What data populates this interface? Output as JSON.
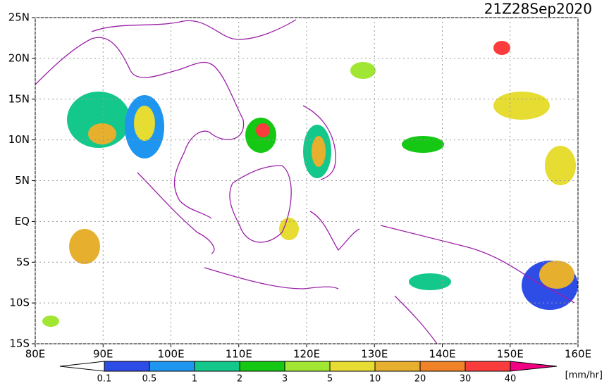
{
  "title": "21Z28Sep2020",
  "map": {
    "xlim": [
      80,
      160
    ],
    "ylim": [
      -15,
      25
    ],
    "xticks": [
      {
        "value": 80,
        "label": "80E"
      },
      {
        "value": 90,
        "label": "90E"
      },
      {
        "value": 100,
        "label": "100E"
      },
      {
        "value": 110,
        "label": "110E"
      },
      {
        "value": 120,
        "label": "120E"
      },
      {
        "value": 130,
        "label": "130E"
      },
      {
        "value": 140,
        "label": "140E"
      },
      {
        "value": 150,
        "label": "150E"
      },
      {
        "value": 160,
        "label": "160E"
      }
    ],
    "yticks": [
      {
        "value": 25,
        "label": "25N"
      },
      {
        "value": 20,
        "label": "20N"
      },
      {
        "value": 15,
        "label": "15N"
      },
      {
        "value": 10,
        "label": "10N"
      },
      {
        "value": 5,
        "label": "5N"
      },
      {
        "value": 0,
        "label": "EQ"
      },
      {
        "value": -5,
        "label": "5S"
      },
      {
        "value": -10,
        "label": "10S"
      },
      {
        "value": -15,
        "label": "15S"
      }
    ],
    "grid": true
  },
  "colorbar": {
    "levels": [
      0.1,
      0.5,
      1,
      2,
      3,
      5,
      10,
      20,
      30,
      40
    ],
    "colors": [
      "#2d4de6",
      "#1e96f0",
      "#14c88c",
      "#14c814",
      "#a0e632",
      "#e6dc32",
      "#e6af2d",
      "#f08228",
      "#fa3c3c",
      "#f00082"
    ],
    "unit": "[mm/hr]"
  }
}
